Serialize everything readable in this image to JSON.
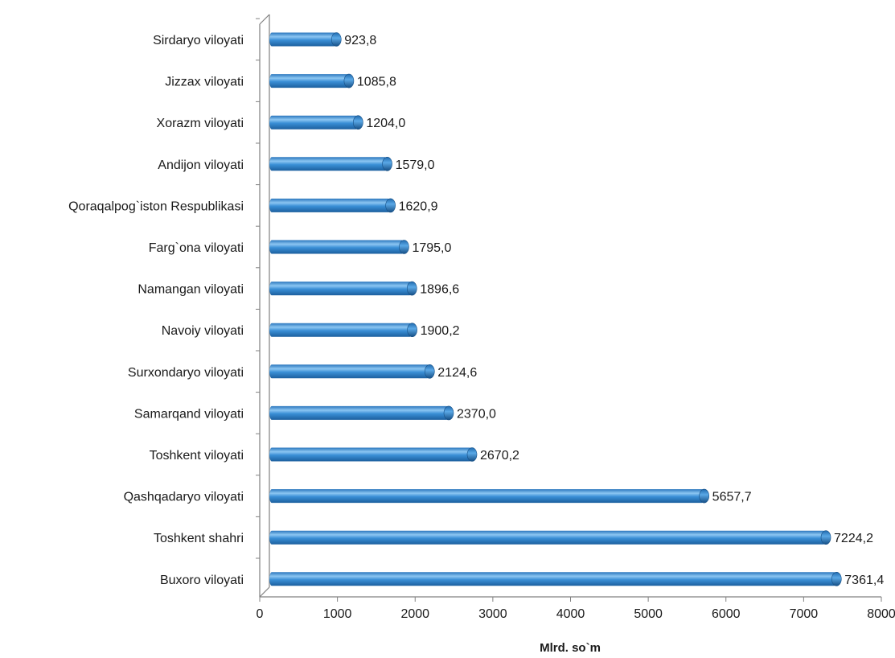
{
  "chart_data": {
    "type": "bar",
    "orientation": "horizontal",
    "categories": [
      "Sirdaryo viloyati",
      "Jizzax viloyati",
      "Xorazm viloyati",
      "Andijon viloyati",
      "Qoraqalpog`iston Respublikasi",
      "Farg`ona viloyati",
      "Namangan viloyati",
      "Navoiy viloyati",
      "Surxondaryo viloyati",
      "Samarqand viloyati",
      "Toshkent viloyati",
      "Qashqadaryo viloyati",
      "Toshkent shahri",
      "Buxoro viloyati"
    ],
    "values": [
      923.8,
      1085.8,
      1204.0,
      1579.0,
      1620.9,
      1795.0,
      1896.6,
      1900.2,
      2124.6,
      2370.0,
      2670.2,
      5657.7,
      7224.2,
      7361.4
    ],
    "value_labels": [
      "923,8",
      "1085,8",
      "1204,0",
      "1579,0",
      "1620,9",
      "1795,0",
      "1896,6",
      "1900,2",
      "2124,6",
      "2370,0",
      "2670,2",
      "5657,7",
      "7224,2",
      "7361,4"
    ],
    "xlabel": "Mlrd. so`m",
    "xlim": [
      0,
      8000
    ],
    "xticks": [
      "0",
      "1000",
      "2000",
      "3000",
      "4000",
      "5000",
      "6000",
      "7000",
      "8000"
    ],
    "grid": false,
    "legend": "none",
    "colors": {
      "bar_main": "#3a8fd6",
      "bar_light": "#8cc6f2",
      "bar_dark": "#1c5f9e",
      "axis": "#808080"
    }
  }
}
